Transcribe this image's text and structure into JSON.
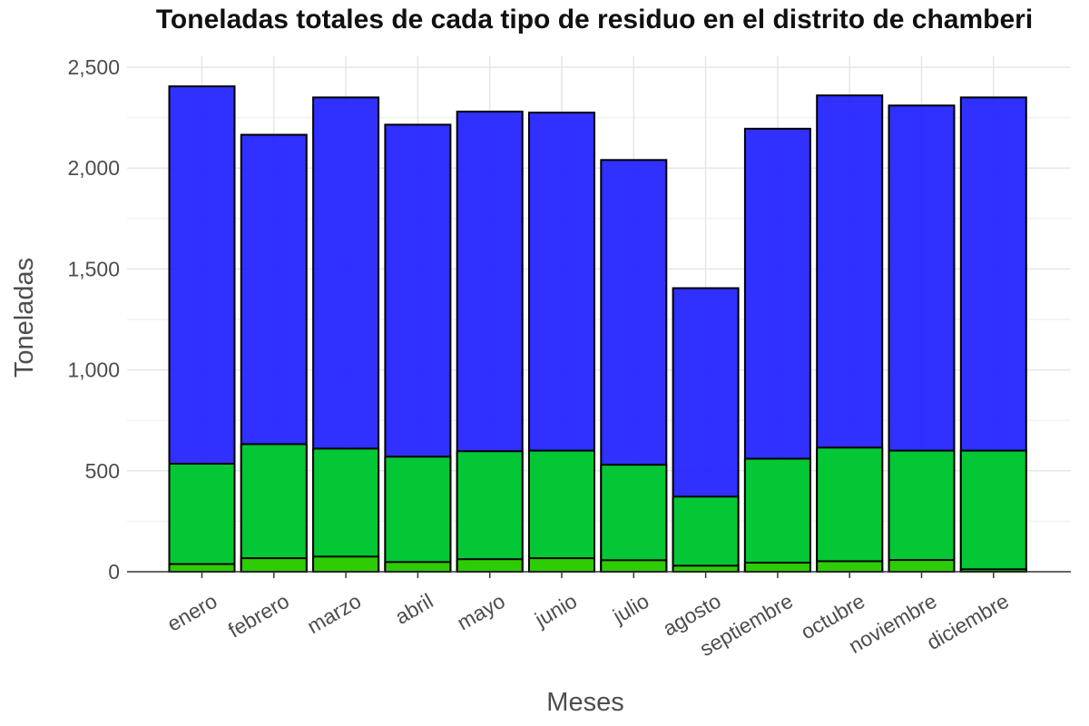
{
  "chart_data": {
    "type": "bar",
    "stacked": false,
    "overlaid": true,
    "title": "Toneladas totales de cada tipo de residuo en el distrito de chamberi",
    "xlabel": "Meses",
    "ylabel": "Toneladas",
    "ylim": [
      0,
      2500
    ],
    "yticks": [
      0,
      500,
      1000,
      1500,
      2000,
      2500
    ],
    "ytick_labels": [
      "0",
      "500",
      "1,000",
      "1,500",
      "2,000",
      "2,500"
    ],
    "grid": true,
    "categories": [
      "enero",
      "febrero",
      "marzo",
      "abril",
      "mayo",
      "junio",
      "julio",
      "agosto",
      "septiembre",
      "octubre",
      "noviembre",
      "diciembre"
    ],
    "series": [
      {
        "color": "#1a1aff",
        "values": [
          2405,
          2165,
          2350,
          2215,
          2280,
          2275,
          2040,
          1405,
          2195,
          2360,
          2310,
          2350
        ]
      },
      {
        "color": "#00d81f",
        "values": [
          535,
          632,
          610,
          570,
          597,
          600,
          530,
          372,
          560,
          615,
          600,
          600
        ]
      },
      {
        "color": "#33cc00",
        "values": [
          38,
          67,
          75,
          48,
          62,
          67,
          57,
          30,
          45,
          52,
          58,
          12
        ]
      }
    ]
  }
}
